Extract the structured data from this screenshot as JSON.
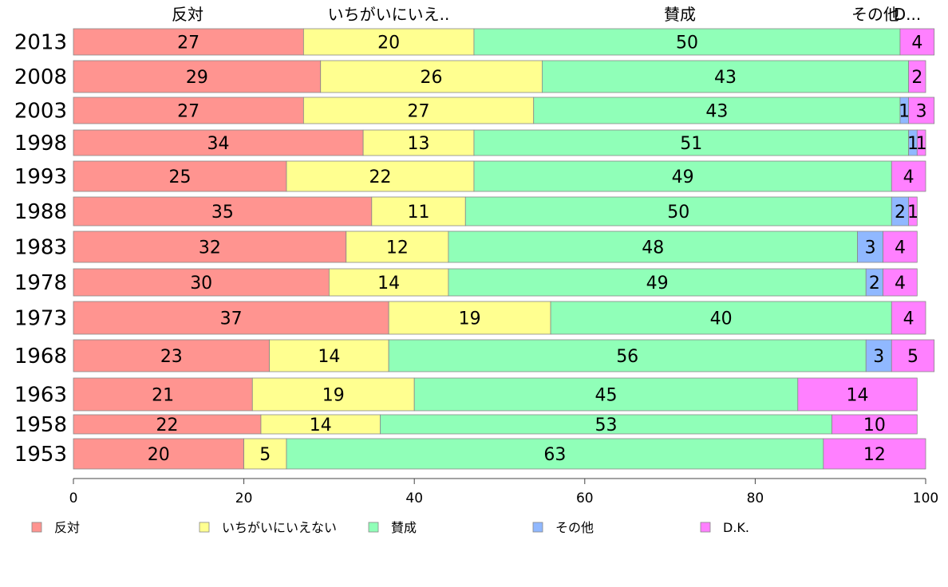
{
  "chart_data": {
    "type": "bar",
    "orientation": "horizontal",
    "stacked": true,
    "categories": [
      "2013",
      "2008",
      "2003",
      "1998",
      "1993",
      "1988",
      "1983",
      "1978",
      "1973",
      "1968",
      "1963",
      "1958",
      "1953"
    ],
    "series": [
      {
        "name": "反対",
        "color": "#ff9490",
        "values": [
          27,
          29,
          27,
          34,
          25,
          35,
          32,
          30,
          37,
          23,
          21,
          22,
          20
        ]
      },
      {
        "name": "いちがいにいえない",
        "color": "#ffff90",
        "values": [
          20,
          26,
          27,
          13,
          22,
          11,
          12,
          14,
          19,
          14,
          19,
          14,
          5
        ]
      },
      {
        "name": "賛成",
        "color": "#90ffb8",
        "values": [
          50,
          43,
          43,
          51,
          49,
          50,
          48,
          49,
          40,
          56,
          45,
          53,
          63
        ]
      },
      {
        "name": "その他",
        "color": "#90b8ff",
        "values": [
          0,
          0,
          1,
          1,
          0,
          2,
          3,
          2,
          0,
          3,
          0,
          0,
          0
        ]
      },
      {
        "name": "D.K.",
        "color": "#ff80ff",
        "values": [
          4,
          2,
          3,
          1,
          4,
          1,
          4,
          4,
          4,
          5,
          14,
          10,
          12
        ]
      }
    ],
    "top_labels": [
      "反対",
      "いちがいにいえ..",
      "賛成",
      "その他",
      "D..."
    ],
    "xlim": [
      0,
      100
    ],
    "xticks": [
      0,
      20,
      40,
      60,
      80,
      100
    ],
    "legend_position": "bottom",
    "grid": false
  }
}
